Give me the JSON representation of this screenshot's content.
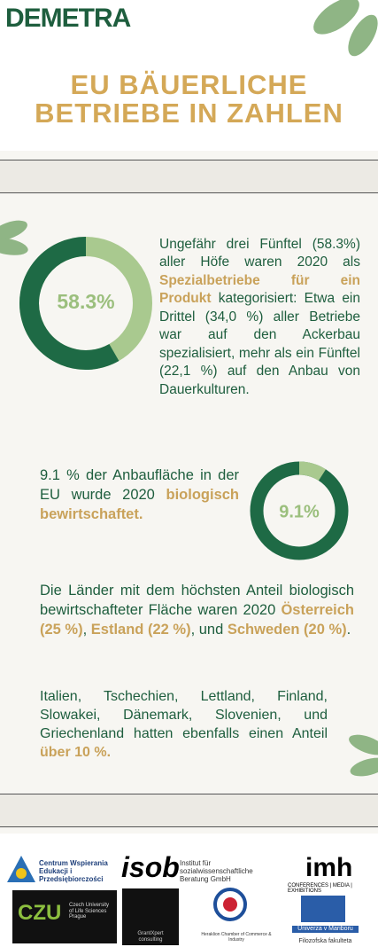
{
  "header": {
    "brand": "DEMETRA",
    "title": [
      "EU BÄUERLICHE",
      "BETRIEBE IN ZAHLEN"
    ]
  },
  "donuts": [
    {
      "value": 58.3,
      "label": "58.3%",
      "color": "#1e6a45",
      "track_color": "#a9c98f"
    },
    {
      "value": 9.1,
      "label": "9.1%",
      "color": "#a9c98f",
      "track_color": "#1e6a45"
    }
  ],
  "paragraphs": [
    [
      "Ungefähr drei Fünftel (58.3%) aller Höfe waren 2020 als ",
      "Spezialbetriebe für ein Produkt",
      " kategorisiert: Etwa ein Drittel (34,0 %) aller Betriebe war auf den Ackerbau spezialisiert, mehr als ein Fünftel (22,1 %) auf den Anbau von Dauerkulturen."
    ],
    [
      "9.1 % der Anbaufläche in der EU wurde 2020 ",
      "biologisch bewirtschaftet."
    ],
    [
      "Die Länder mit dem höchsten Anteil biologisch bewirtschafteter Fläche waren 2020 ",
      "Österreich (25 %)",
      ", ",
      "Estland (22 %)",
      ", und ",
      "Schweden (20 %)",
      "."
    ],
    [
      "Italien, Tschechien, Lettland, Finland, Slowakei, Dänemark, Slovenien, und Griechenland hatten ebenfalls einen Anteil ",
      "über 10 %."
    ]
  ],
  "logos": {
    "cwep": "Centrum Wspierania Edukacji i Przedsiębiorczości",
    "isob": "isob",
    "isob_text": "Institut für sozialwissenschaftliche Beratung GmbH",
    "imh": "imh",
    "imh_text": "CONFERENCES | MEDIA | EXHIBITIONS",
    "czu": "CZU",
    "czu_text": "Czech University of Life Sciences Prague",
    "grantxpert": "GrantXpert consulting",
    "heraklion": "Heraklion Chamber of Commerce & Industry",
    "maribor": "Univerza v Mariboru",
    "maribor_text": "Filozofska fakulteta"
  }
}
